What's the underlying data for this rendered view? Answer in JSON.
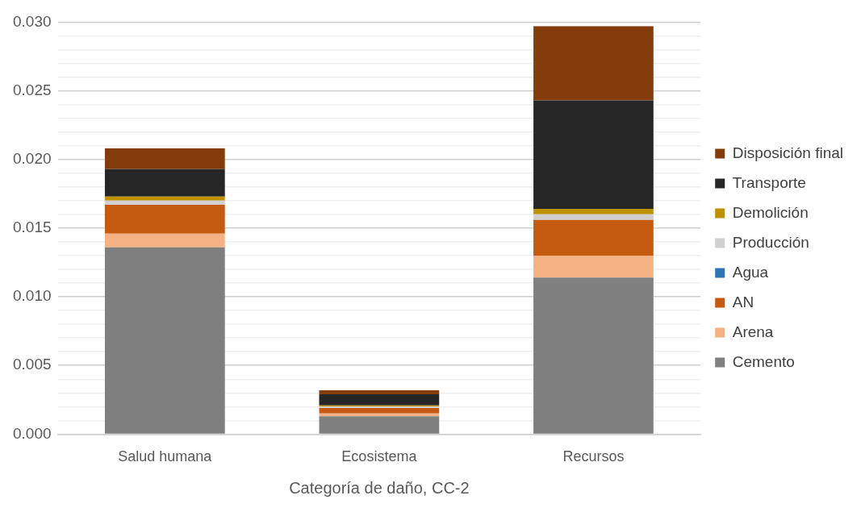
{
  "chart_data": {
    "type": "bar",
    "stacked": true,
    "xlabel": "Categoría de daño, CC-2",
    "categories": [
      "Salud humana",
      "Ecosistema",
      "Recursos"
    ],
    "series": [
      {
        "name": "Cemento",
        "color": "#7f7f7f",
        "values": [
          0.0136,
          0.0013,
          0.0114
        ]
      },
      {
        "name": "Arena",
        "color": "#f4b183",
        "values": [
          0.001,
          0.0002,
          0.0016
        ]
      },
      {
        "name": "AN",
        "color": "#c55a11",
        "values": [
          0.0021,
          0.0004,
          0.0026
        ]
      },
      {
        "name": "Agua",
        "color": "#2e75b6",
        "values": [
          0,
          0,
          0
        ]
      },
      {
        "name": "Producción",
        "color": "#d0d0d0",
        "values": [
          0.0003,
          0.0001,
          0.0004
        ]
      },
      {
        "name": "Demolición",
        "color": "#bf9000",
        "values": [
          0.0003,
          0.0001,
          0.0004
        ]
      },
      {
        "name": "Transporte",
        "color": "#262626",
        "values": [
          0.002,
          0.0008,
          0.0079
        ]
      },
      {
        "name": "Disposición final",
        "color": "#843c0c",
        "values": [
          0.0015,
          0.0003,
          0.0054
        ]
      }
    ],
    "ylim": [
      0,
      0.03
    ],
    "yticks": [
      "0.000",
      {
        "value": 0.001,
        "label": null
      },
      {
        "value": 0.002,
        "label": null
      },
      {
        "value": 0.003,
        "label": null
      },
      {
        "value": 0.004,
        "label": null
      },
      {
        "value": 0.005,
        "label": "0.005"
      },
      {
        "value": 0.006,
        "label": null
      },
      {
        "value": 0.007,
        "label": null
      },
      {
        "value": 0.008,
        "label": null
      },
      {
        "value": 0.009,
        "label": null
      },
      {
        "value": 0.01,
        "label": "0.010"
      },
      {
        "value": 0.011,
        "label": null
      },
      {
        "value": 0.012,
        "label": null
      },
      {
        "value": 0.013,
        "label": null
      },
      {
        "value": 0.014,
        "label": null
      },
      {
        "value": 0.015,
        "label": "0.015"
      },
      {
        "value": 0.016,
        "label": null
      },
      {
        "value": 0.017,
        "label": null
      },
      {
        "value": 0.018,
        "label": null
      },
      {
        "value": 0.019,
        "label": null
      },
      {
        "value": 0.02,
        "label": "0.020"
      },
      {
        "value": 0.021,
        "label": null
      },
      {
        "value": 0.022,
        "label": null
      },
      {
        "value": 0.023,
        "label": null
      },
      {
        "value": 0.024,
        "label": null
      },
      {
        "value": 0.025,
        "label": "0.025"
      },
      {
        "value": 0.026,
        "label": null
      },
      {
        "value": 0.027,
        "label": null
      },
      {
        "value": 0.028,
        "label": null
      },
      {
        "value": 0.029,
        "label": null
      },
      {
        "value": 0.03,
        "label": "0.030"
      }
    ],
    "grid": "y",
    "legend": "right"
  }
}
